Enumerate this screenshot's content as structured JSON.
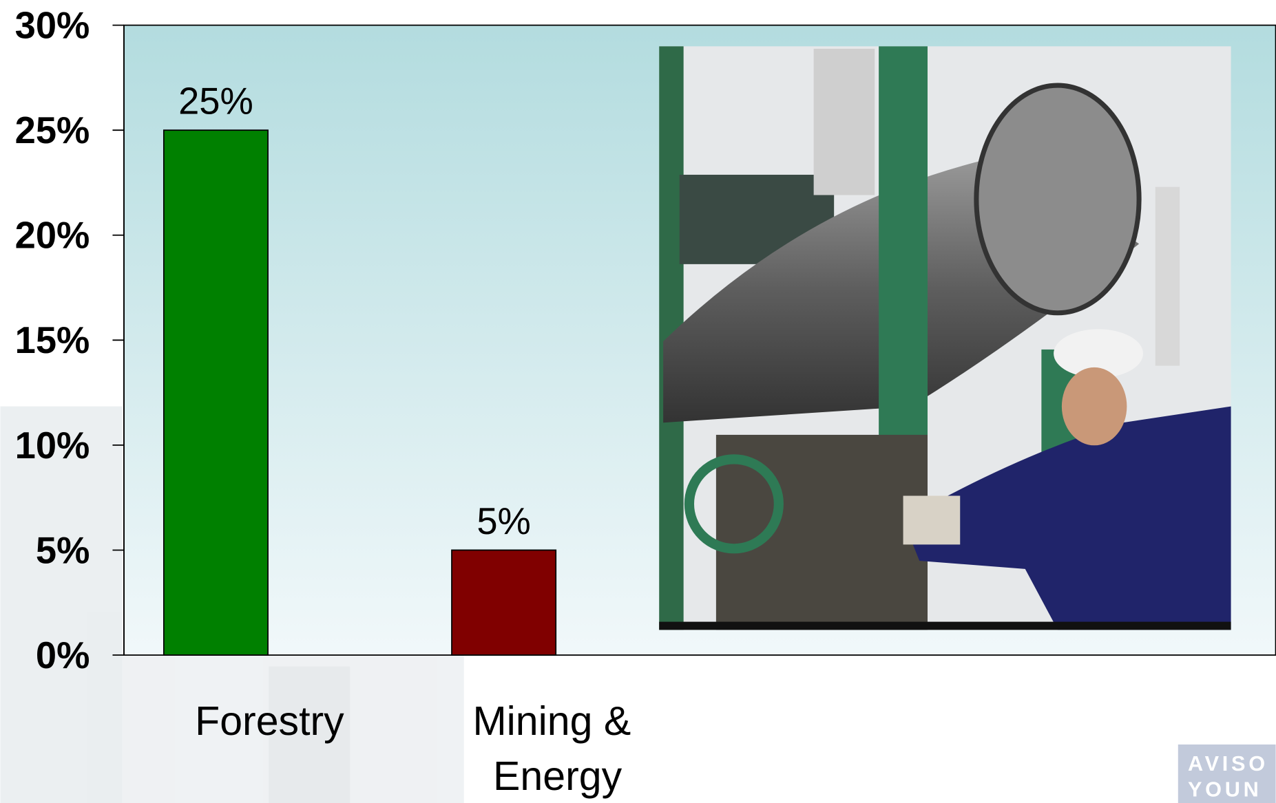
{
  "chart_data": {
    "type": "bar",
    "categories": [
      "Forestry",
      "Mining & Energy"
    ],
    "values": [
      25,
      5
    ],
    "value_labels": [
      "25%",
      "5%"
    ],
    "colors": [
      "#008000",
      "#800000"
    ],
    "ylim": [
      0,
      30
    ],
    "yticks": [
      {
        "value": 0,
        "label": "0%"
      },
      {
        "value": 5,
        "label": "5%"
      },
      {
        "value": 10,
        "label": "10%"
      },
      {
        "value": 15,
        "label": "15%"
      },
      {
        "value": 20,
        "label": "20%"
      },
      {
        "value": 25,
        "label": "25%"
      },
      {
        "value": 30,
        "label": "30%"
      }
    ],
    "grid": false
  },
  "logo": {
    "lines": [
      "AVISO",
      "YOUN"
    ]
  }
}
